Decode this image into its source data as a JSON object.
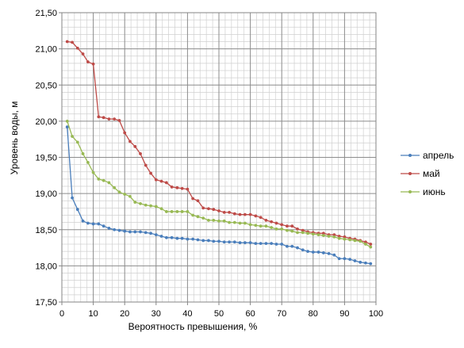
{
  "chart_data": {
    "type": "line",
    "title": "",
    "xlabel": "Вероятность превышения, %",
    "ylabel": "Уровень воды, м",
    "xlim": [
      0,
      100
    ],
    "ylim": [
      17.5,
      21.5
    ],
    "x_ticks": [
      0,
      10,
      20,
      30,
      40,
      50,
      60,
      70,
      80,
      90,
      100
    ],
    "x_tick_labels": [
      "0",
      "10",
      "20",
      "30",
      "40",
      "50",
      "60",
      "70",
      "80",
      "90",
      "100"
    ],
    "y_ticks": [
      17.5,
      18.0,
      18.5,
      19.0,
      19.5,
      20.0,
      20.5,
      21.0,
      21.5
    ],
    "y_tick_labels": [
      "17,50",
      "18,00",
      "18,50",
      "19,00",
      "19,50",
      "20,00",
      "20,50",
      "21,00",
      "21,50"
    ],
    "grid": true,
    "legend_position": "right",
    "series": [
      {
        "name": "апрель",
        "color": "#4a7ebb",
        "x": [
          1.7,
          3.3,
          5.0,
          6.7,
          8.3,
          10.0,
          11.7,
          13.3,
          15.0,
          16.7,
          18.3,
          20.0,
          21.7,
          23.3,
          25.0,
          26.7,
          28.3,
          30.0,
          31.7,
          33.3,
          35.0,
          36.7,
          38.3,
          40.0,
          41.7,
          43.3,
          45.0,
          46.7,
          48.3,
          50.0,
          51.7,
          53.3,
          55.0,
          56.7,
          58.3,
          60.0,
          61.7,
          63.3,
          65.0,
          66.7,
          68.3,
          70.0,
          71.7,
          73.3,
          75.0,
          76.7,
          78.3,
          80.0,
          81.7,
          83.3,
          85.0,
          86.7,
          88.3,
          90.0,
          91.7,
          93.3,
          95.0,
          96.7,
          98.3
        ],
        "y": [
          19.92,
          18.94,
          18.78,
          18.62,
          18.59,
          18.58,
          18.58,
          18.55,
          18.52,
          18.5,
          18.49,
          18.48,
          18.47,
          18.47,
          18.47,
          18.46,
          18.45,
          18.43,
          18.41,
          18.39,
          18.39,
          18.38,
          18.38,
          18.37,
          18.37,
          18.36,
          18.35,
          18.35,
          18.34,
          18.34,
          18.33,
          18.33,
          18.33,
          18.32,
          18.32,
          18.32,
          18.31,
          18.31,
          18.31,
          18.31,
          18.3,
          18.3,
          18.27,
          18.27,
          18.25,
          18.22,
          18.2,
          18.19,
          18.19,
          18.18,
          18.17,
          18.15,
          18.1,
          18.1,
          18.09,
          18.07,
          18.05,
          18.04,
          18.03
        ]
      },
      {
        "name": "май",
        "color": "#be4b48",
        "x": [
          1.7,
          3.3,
          5.0,
          6.7,
          8.3,
          10.0,
          11.7,
          13.3,
          15.0,
          16.7,
          18.3,
          20.0,
          21.7,
          23.3,
          25.0,
          26.7,
          28.3,
          30.0,
          31.7,
          33.3,
          35.0,
          36.7,
          38.3,
          40.0,
          41.7,
          43.3,
          45.0,
          46.7,
          48.3,
          50.0,
          51.7,
          53.3,
          55.0,
          56.7,
          58.3,
          60.0,
          61.7,
          63.3,
          65.0,
          66.7,
          68.3,
          70.0,
          71.7,
          73.3,
          75.0,
          76.7,
          78.3,
          80.0,
          81.7,
          83.3,
          85.0,
          86.7,
          88.3,
          90.0,
          91.7,
          93.3,
          95.0,
          96.7,
          98.3
        ],
        "y": [
          21.1,
          21.09,
          21.01,
          20.93,
          20.82,
          20.79,
          20.06,
          20.05,
          20.03,
          20.03,
          20.01,
          19.84,
          19.72,
          19.65,
          19.55,
          19.39,
          19.28,
          19.19,
          19.17,
          19.15,
          19.09,
          19.08,
          19.07,
          19.06,
          18.93,
          18.9,
          18.8,
          18.79,
          18.78,
          18.76,
          18.74,
          18.74,
          18.72,
          18.71,
          18.71,
          18.71,
          18.69,
          18.67,
          18.63,
          18.61,
          18.59,
          18.57,
          18.55,
          18.55,
          18.51,
          18.49,
          18.47,
          18.46,
          18.45,
          18.45,
          18.43,
          18.43,
          18.41,
          18.4,
          18.38,
          18.37,
          18.35,
          18.33,
          18.3
        ]
      },
      {
        "name": "июнь",
        "color": "#98b954",
        "x": [
          1.7,
          3.3,
          5.0,
          6.7,
          8.3,
          10.0,
          11.7,
          13.3,
          15.0,
          16.7,
          18.3,
          20.0,
          21.7,
          23.3,
          25.0,
          26.7,
          28.3,
          30.0,
          31.7,
          33.3,
          35.0,
          36.7,
          38.3,
          40.0,
          41.7,
          43.3,
          45.0,
          46.7,
          48.3,
          50.0,
          51.7,
          53.3,
          55.0,
          56.7,
          58.3,
          60.0,
          61.7,
          63.3,
          65.0,
          66.7,
          68.3,
          70.0,
          71.7,
          73.3,
          75.0,
          76.7,
          78.3,
          80.0,
          81.7,
          83.3,
          85.0,
          86.7,
          88.3,
          90.0,
          91.7,
          93.3,
          95.0,
          96.7,
          98.3
        ],
        "y": [
          20.0,
          19.79,
          19.71,
          19.55,
          19.43,
          19.29,
          19.2,
          19.18,
          19.15,
          19.08,
          19.02,
          18.99,
          18.96,
          18.88,
          18.86,
          18.84,
          18.83,
          18.82,
          18.79,
          18.75,
          18.75,
          18.75,
          18.75,
          18.75,
          18.7,
          18.68,
          18.66,
          18.63,
          18.63,
          18.62,
          18.62,
          18.6,
          18.6,
          18.59,
          18.59,
          18.57,
          18.56,
          18.55,
          18.55,
          18.53,
          18.51,
          18.51,
          18.49,
          18.48,
          18.46,
          18.46,
          18.45,
          18.44,
          18.43,
          18.42,
          18.41,
          18.4,
          18.38,
          18.37,
          18.36,
          18.35,
          18.34,
          18.3,
          18.26
        ]
      }
    ]
  }
}
